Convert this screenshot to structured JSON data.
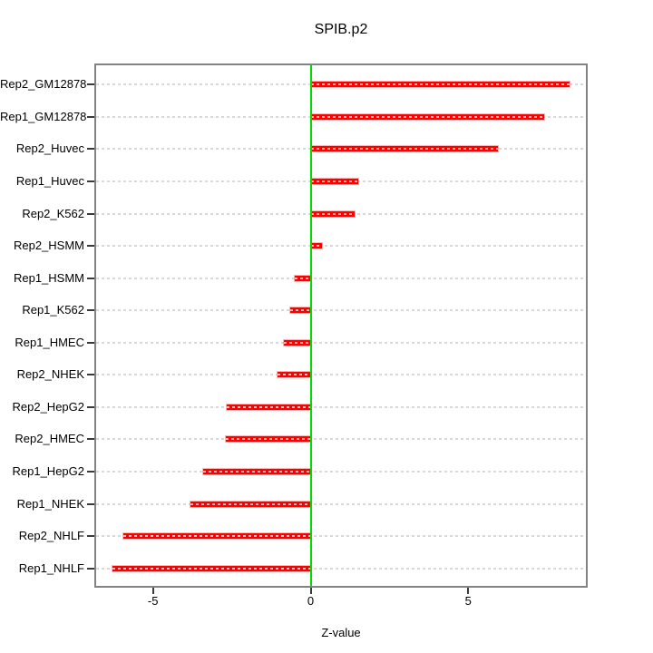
{
  "chart_data": {
    "type": "bar",
    "orientation": "horizontal",
    "title": "SPIB.p2",
    "xlabel": "Z-value",
    "ylabel": "",
    "categories": [
      "Rep2_GM12878",
      "Rep1_GM12878",
      "Rep2_Huvec",
      "Rep1_Huvec",
      "Rep2_K562",
      "Rep2_HSMM",
      "Rep1_HSMM",
      "Rep1_K562",
      "Rep1_HMEC",
      "Rep2_NHEK",
      "Rep2_HepG2",
      "Rep2_HMEC",
      "Rep1_HepG2",
      "Rep1_NHEK",
      "Rep2_NHLF",
      "Rep1_NHLF"
    ],
    "values": [
      8.2,
      7.4,
      5.95,
      1.5,
      1.4,
      0.35,
      -0.5,
      -0.65,
      -0.85,
      -1.05,
      -2.65,
      -2.7,
      -3.4,
      -3.8,
      -5.95,
      -6.3
    ],
    "xticks": [
      -5,
      0,
      5
    ],
    "xlim": [
      -6.85,
      8.75
    ],
    "grid": "dashed light-gray horizontal line at each category",
    "legend": "none",
    "bar_color": "#FF0000",
    "zero_line_color": "#00DC00",
    "gridline_color": "#D8D8D8",
    "box_color": "#828282",
    "tick_color": "#3A3A3A",
    "text_color": "#000000"
  }
}
